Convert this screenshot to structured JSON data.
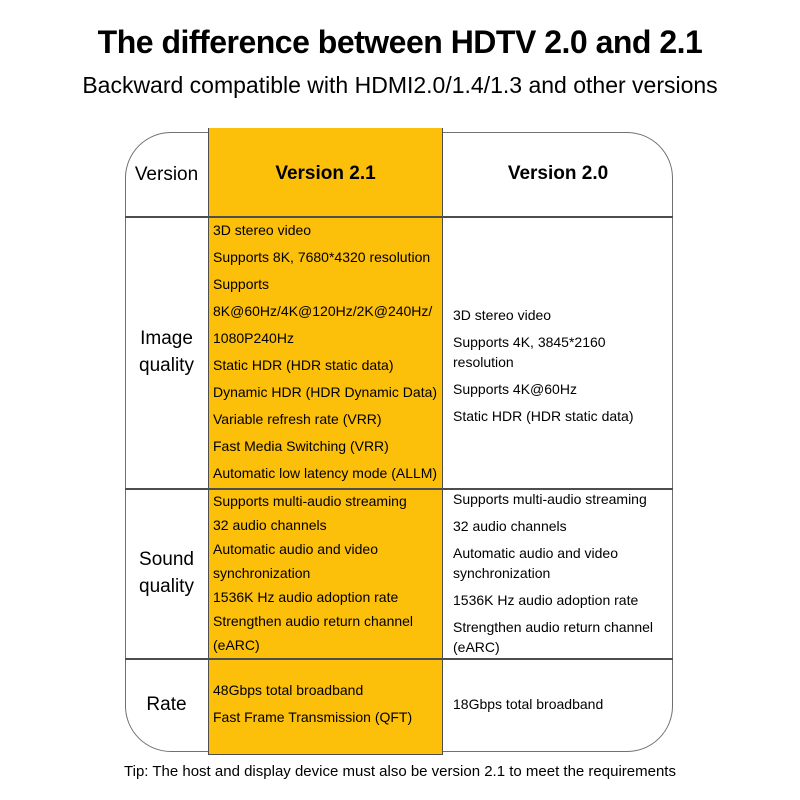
{
  "page": {
    "title": "The difference between HDTV 2.0 and 2.1",
    "subtitle": "Backward compatible with HDMI2.0/1.4/1.3 and other versions",
    "tip": "Tip: The host and display device must also be version 2.1 to meet the requirements"
  },
  "colors": {
    "highlight_column": "#FCBF0A",
    "grid_line": "#4D4D4D",
    "outer_border": "#707070",
    "text": "#000000",
    "background": "#FFFFFF"
  },
  "table": {
    "header": {
      "label_col": "Version",
      "v21_col": "Version 2.1",
      "v20_col": "Version 2.0"
    },
    "rows": [
      {
        "label": "Image quality",
        "v21": [
          "3D stereo video",
          "Supports 8K, 7680*4320 resolution",
          "Supports 8K@60Hz/4K@120Hz/2K@240Hz/1080P240Hz",
          "Static HDR (HDR static data)",
          "Dynamic HDR (HDR Dynamic Data)",
          "Variable refresh rate (VRR)",
          "Fast Media Switching (VRR)",
          "Automatic low latency mode (ALLM)"
        ],
        "v20": [
          "3D stereo video",
          "Supports 4K, 3845*2160 resolution",
          "Supports 4K@60Hz",
          "Static HDR (HDR static data)"
        ]
      },
      {
        "label": "Sound quality",
        "v21": [
          "Supports multi-audio streaming",
          "32 audio channels",
          "Automatic audio and video synchronization",
          "1536K Hz audio adoption rate",
          "Strengthen audio return channel (eARC)"
        ],
        "v20": [
          "Supports multi-audio streaming",
          "32 audio channels",
          "Automatic audio and video synchronization",
          "1536K Hz audio adoption rate",
          "Strengthen audio return channel (eARC)"
        ]
      },
      {
        "label": "Rate",
        "v21": [
          "48Gbps total broadband",
          "Fast Frame Transmission (QFT)"
        ],
        "v20": [
          "18Gbps total broadband"
        ]
      }
    ]
  }
}
